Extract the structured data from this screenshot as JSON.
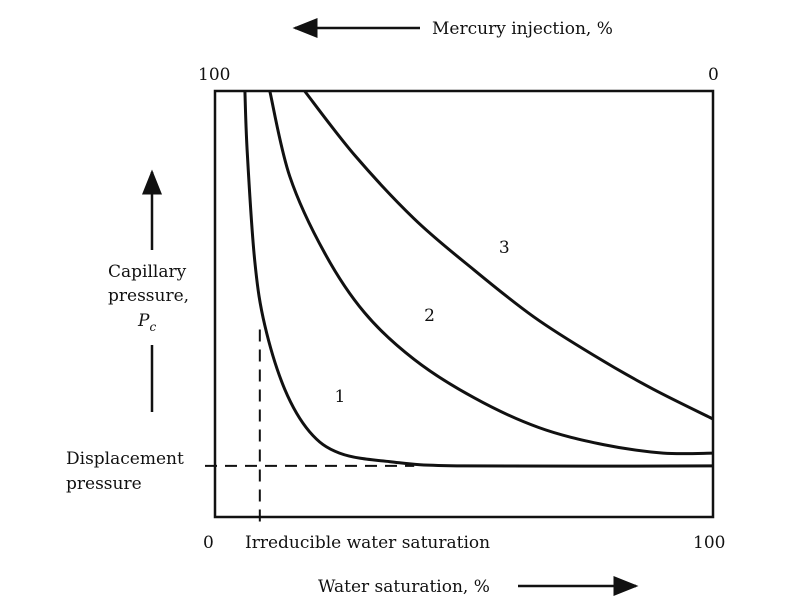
{
  "chart_data": {
    "type": "line",
    "top_axis_label": "Mercury injection, %",
    "xlabel": "Water saturation, %",
    "ylabel_line1": "Capillary",
    "ylabel_line2": "pressure,",
    "ylabel_symbol": "P",
    "ylabel_subscript": "c",
    "top_ticks": {
      "left": "100",
      "right": "0"
    },
    "bottom_ticks": {
      "left": "0",
      "right": "100"
    },
    "displacement_label_line1": "Displacement",
    "displacement_label_line2": "pressure",
    "irreducible_label": "Irreducible water saturation",
    "xlim": [
      0,
      100
    ],
    "ylim": [
      0,
      100
    ],
    "displacement_pressure": 12,
    "irreducible_water_saturation": 9,
    "series": [
      {
        "name": "1",
        "points": [
          [
            6,
            100
          ],
          [
            6.5,
            85
          ],
          [
            8,
            60
          ],
          [
            10,
            45
          ],
          [
            14,
            30
          ],
          [
            19,
            20
          ],
          [
            25,
            15
          ],
          [
            35,
            13
          ],
          [
            50,
            12
          ],
          [
            100,
            12
          ]
        ]
      },
      {
        "name": "2",
        "points": [
          [
            11,
            100
          ],
          [
            15,
            80
          ],
          [
            22,
            62
          ],
          [
            30,
            48
          ],
          [
            40,
            37
          ],
          [
            52,
            28
          ],
          [
            65,
            21
          ],
          [
            78,
            17
          ],
          [
            90,
            15
          ],
          [
            100,
            15
          ]
        ]
      },
      {
        "name": "3",
        "points": [
          [
            18,
            100
          ],
          [
            28,
            85
          ],
          [
            40,
            70
          ],
          [
            52,
            58
          ],
          [
            64,
            47
          ],
          [
            76,
            38
          ],
          [
            88,
            30
          ],
          [
            100,
            23
          ]
        ]
      }
    ],
    "series_label_positions": [
      [
        24,
        27
      ],
      [
        42,
        46
      ],
      [
        57,
        62
      ]
    ]
  }
}
